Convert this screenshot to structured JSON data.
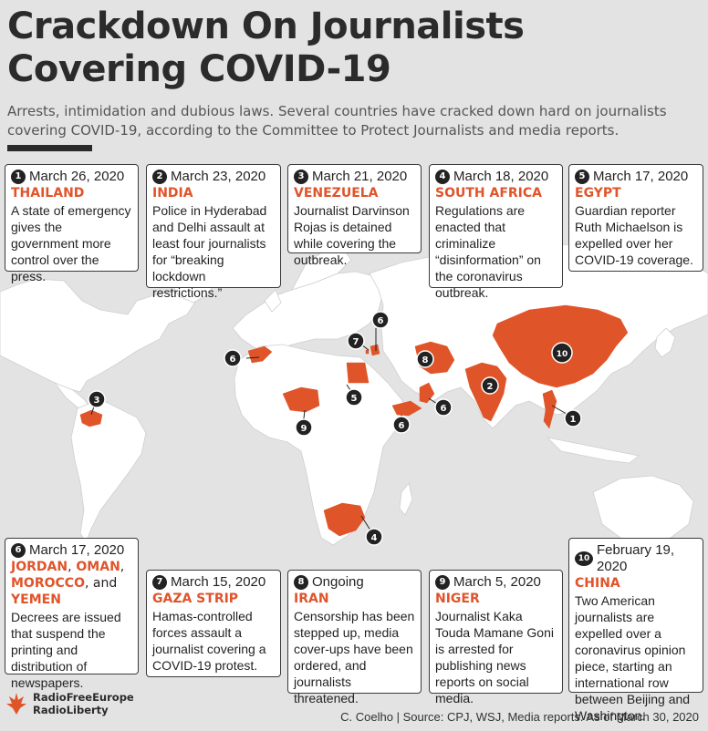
{
  "header": {
    "title_line1": "Crackdown On Journalists",
    "title_line2": "Covering COVID-19",
    "subtitle": "Arrests, intimidation and dubious laws. Several countries have cracked down hard on journalists covering COVID-19, according to the Committee to Protect Journalists and media reports."
  },
  "cards": [
    {
      "num": "1",
      "date": "March 26, 2020",
      "country": "THAILAND",
      "body": "A state of emergency gives the government more control over the press."
    },
    {
      "num": "2",
      "date": "March 23, 2020",
      "country": "INDIA",
      "body": "Police in Hyderabad and Delhi assault at least four journalists for “breaking lockdown restrictions.”"
    },
    {
      "num": "3",
      "date": "March 21, 2020",
      "country": "VENEZUELA",
      "body": "Journalist Darvinson Rojas is detained while covering the outbreak."
    },
    {
      "num": "4",
      "date": "March 18, 2020",
      "country": "SOUTH AFRICA",
      "body": "Regulations are enacted that criminalize “disinformation” on the coronavirus outbreak."
    },
    {
      "num": "5",
      "date": "March 17, 2020",
      "country": "EGYPT",
      "body": "Guardian reporter Ruth Michaelson is expelled over her COVID-19 coverage."
    },
    {
      "num": "6",
      "date": "March 17, 2020",
      "countries": [
        "JORDAN",
        "OMAN",
        "MOROCCO",
        "YEMEN"
      ],
      "sep1": ",",
      "sep2": ",",
      "sep3": ", and",
      "body": "Decrees are issued that suspend the printing and distribution of newspapers."
    },
    {
      "num": "7",
      "date": "March 15, 2020",
      "country": "GAZA STRIP",
      "body": "Hamas-controlled forces assault a journalist covering a COVID-19 protest."
    },
    {
      "num": "8",
      "date": "Ongoing",
      "country": "IRAN",
      "body": "Censorship has been stepped up, media cover-ups have been ordered, and journalists threatened."
    },
    {
      "num": "9",
      "date": "March 5, 2020",
      "country": "NIGER",
      "body": "Journalist Kaka Touda Mamane Goni is arrested for publishing news reports on social media."
    },
    {
      "num": "10",
      "date": "February 19, 2020",
      "country": "CHINA",
      "body": "Two American journalists are expelled over a coronavirus opinion piece, starting an international row between Beijing and Washington."
    }
  ],
  "map_markers": [
    "1",
    "2",
    "3",
    "4",
    "5",
    "6",
    "6",
    "6",
    "6",
    "7",
    "8",
    "9",
    "10"
  ],
  "logo": {
    "line1": "RadioFreeEurope",
    "line2": "RadioLiberty"
  },
  "source": "C. Coelho | Source: CPJ, WSJ, Media reports. As of March 30, 2020",
  "colors": {
    "highlight": "#e0542a",
    "land": "#ffffff",
    "background": "#e3e3e3",
    "text": "#231f20"
  }
}
